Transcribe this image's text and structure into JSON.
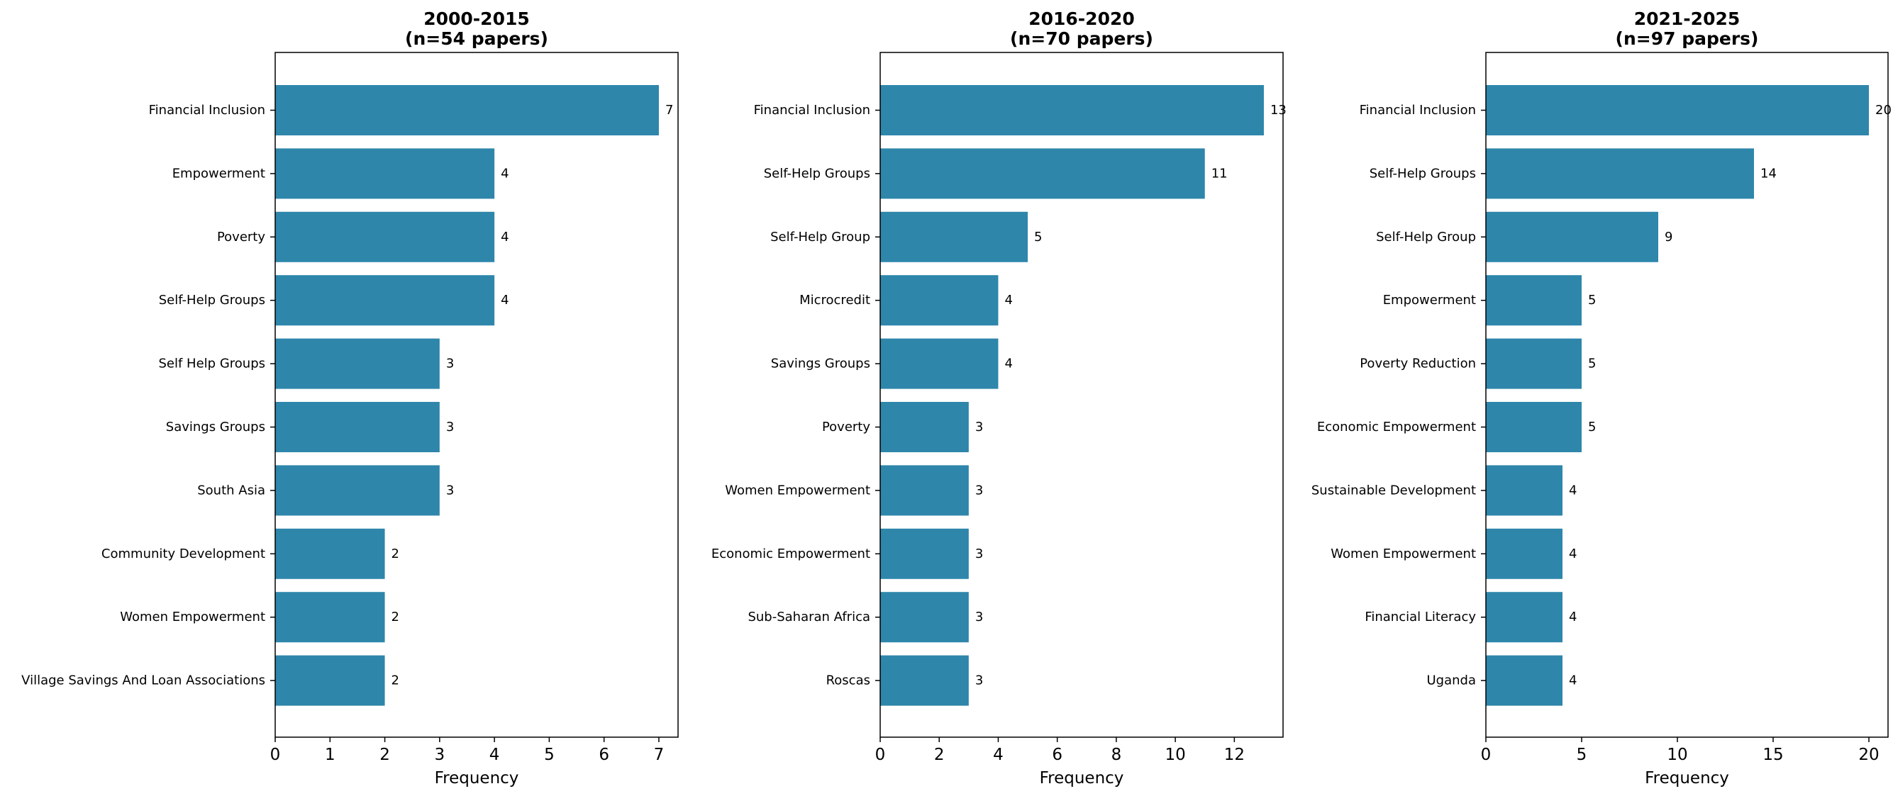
{
  "chart_data": [
    {
      "type": "bar",
      "orientation": "horizontal",
      "title": "2000-2015\n(n=54 papers)",
      "xlabel": "Frequency",
      "xlim": [
        0,
        7.35
      ],
      "xticks": [
        0,
        1,
        2,
        3,
        4,
        5,
        6,
        7
      ],
      "categories": [
        "Financial Inclusion",
        "Empowerment",
        "Poverty",
        "Self-Help Groups",
        "Self Help Groups",
        "Savings Groups",
        "South Asia",
        "Community Development",
        "Women Empowerment",
        "Village Savings And Loan Associations"
      ],
      "values": [
        7,
        4,
        4,
        4,
        3,
        3,
        3,
        2,
        2,
        2
      ],
      "bar_color": "#2e86ab",
      "grid": false
    },
    {
      "type": "bar",
      "orientation": "horizontal",
      "title": "2016-2020\n(n=70 papers)",
      "xlabel": "Frequency",
      "xlim": [
        0,
        13.65
      ],
      "xticks": [
        0,
        2,
        4,
        6,
        8,
        10,
        12
      ],
      "categories": [
        "Financial Inclusion",
        "Self-Help Groups",
        "Self-Help Group",
        "Microcredit",
        "Savings Groups",
        "Poverty",
        "Women Empowerment",
        "Economic Empowerment",
        "Sub-Saharan Africa",
        "Roscas"
      ],
      "values": [
        13,
        11,
        5,
        4,
        4,
        3,
        3,
        3,
        3,
        3
      ],
      "bar_color": "#2e86ab",
      "grid": false
    },
    {
      "type": "bar",
      "orientation": "horizontal",
      "title": "2021-2025\n(n=97 papers)",
      "xlabel": "Frequency",
      "xlim": [
        0,
        21
      ],
      "xticks": [
        0,
        5,
        10,
        15,
        20
      ],
      "categories": [
        "Financial Inclusion",
        "Self-Help Groups",
        "Self-Help Group",
        "Empowerment",
        "Poverty Reduction",
        "Economic Empowerment",
        "Sustainable Development",
        "Women Empowerment",
        "Financial Literacy",
        "Uganda"
      ],
      "values": [
        20,
        14,
        9,
        5,
        5,
        5,
        4,
        4,
        4,
        4
      ],
      "bar_color": "#2e86ab",
      "grid": false
    }
  ]
}
